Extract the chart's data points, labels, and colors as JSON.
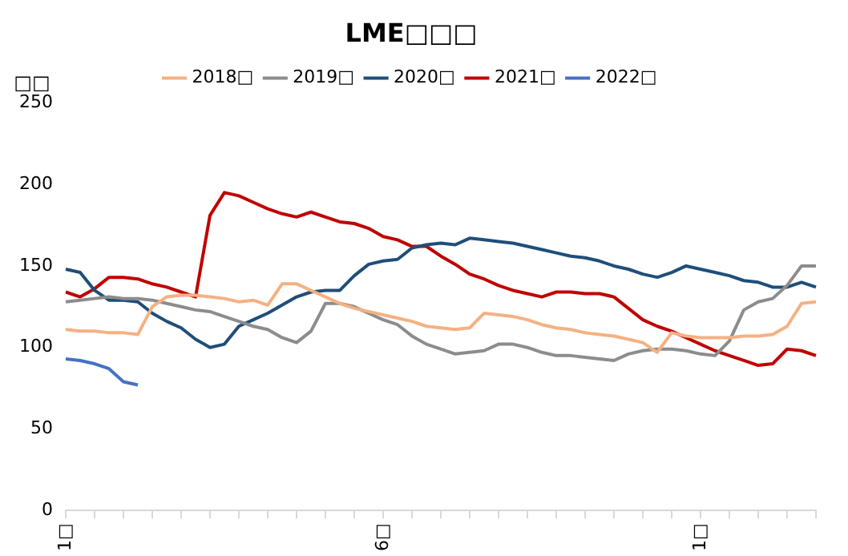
{
  "chart_data": {
    "type": "line",
    "title": "LME□□□",
    "ylabel": "□□",
    "legend": "top",
    "grid": false,
    "marker": "none",
    "line_style": "solid",
    "categories": [
      "1□",
      null,
      null,
      null,
      null,
      null,
      null,
      null,
      null,
      null,
      null,
      null,
      null,
      null,
      null,
      null,
      null,
      null,
      null,
      null,
      null,
      null,
      "6□",
      null,
      null,
      null,
      null,
      null,
      null,
      null,
      null,
      null,
      null,
      null,
      null,
      null,
      null,
      null,
      null,
      null,
      null,
      null,
      null,
      null,
      "1□",
      null,
      null,
      null,
      null,
      null,
      null,
      null,
      null
    ],
    "ylim": [
      0,
      250
    ],
    "yticks": [
      0,
      50,
      100,
      150,
      200,
      250
    ],
    "series": [
      {
        "name": "2018□",
        "color": "#f4b183",
        "values": [
          111,
          110,
          110,
          109,
          109,
          108,
          125,
          131,
          132,
          132,
          131,
          130,
          128,
          129,
          126,
          139,
          139,
          135,
          131,
          127,
          124,
          122,
          120,
          118,
          116,
          113,
          112,
          111,
          112,
          121,
          120,
          119,
          117,
          114,
          112,
          111,
          109,
          108,
          107,
          105,
          103,
          97,
          109,
          107,
          106,
          106,
          106,
          107,
          107,
          108,
          113,
          127,
          128
        ]
      },
      {
        "name": "2019□",
        "color": "#8c8c8c",
        "values": [
          128,
          129,
          130,
          131,
          130,
          130,
          129,
          127,
          125,
          123,
          122,
          119,
          116,
          113,
          111,
          106,
          103,
          110,
          127,
          127,
          125,
          121,
          117,
          114,
          107,
          102,
          99,
          96,
          97,
          98,
          102,
          102,
          100,
          97,
          95,
          95,
          94,
          93,
          92,
          96,
          98,
          99,
          99,
          98,
          96,
          95,
          104,
          123,
          128,
          130,
          138,
          150,
          150
        ]
      },
      {
        "name": "2020□",
        "color": "#1f4e79",
        "values": [
          148,
          146,
          135,
          129,
          129,
          128,
          121,
          116,
          112,
          105,
          100,
          102,
          113,
          117,
          121,
          126,
          131,
          134,
          135,
          135,
          144,
          151,
          153,
          154,
          161,
          163,
          164,
          163,
          167,
          166,
          165,
          164,
          162,
          160,
          158,
          156,
          155,
          153,
          150,
          148,
          145,
          143,
          146,
          150,
          148,
          146,
          144,
          141,
          140,
          137,
          137,
          140,
          137
        ]
      },
      {
        "name": "2021□",
        "color": "#c00000",
        "values": [
          134,
          131,
          136,
          143,
          143,
          142,
          139,
          137,
          134,
          131,
          181,
          195,
          193,
          189,
          185,
          182,
          180,
          183,
          180,
          177,
          176,
          173,
          168,
          166,
          162,
          162,
          156,
          151,
          145,
          142,
          138,
          135,
          133,
          131,
          134,
          134,
          133,
          133,
          131,
          124,
          117,
          113,
          110,
          106,
          102,
          98,
          95,
          92,
          89,
          90,
          99,
          98,
          95
        ]
      },
      {
        "name": "2022□",
        "color": "#4472c4",
        "values": [
          93,
          92,
          90,
          87,
          79,
          77,
          null,
          null,
          null,
          null,
          null,
          null,
          null,
          null,
          null,
          null,
          null,
          null,
          null,
          null,
          null,
          null,
          null,
          null,
          null,
          null,
          null,
          null,
          null,
          null,
          null,
          null,
          null,
          null,
          null,
          null,
          null,
          null,
          null,
          null,
          null,
          null,
          null,
          null,
          null,
          null,
          null,
          null,
          null,
          null,
          null,
          null,
          null
        ]
      }
    ]
  }
}
